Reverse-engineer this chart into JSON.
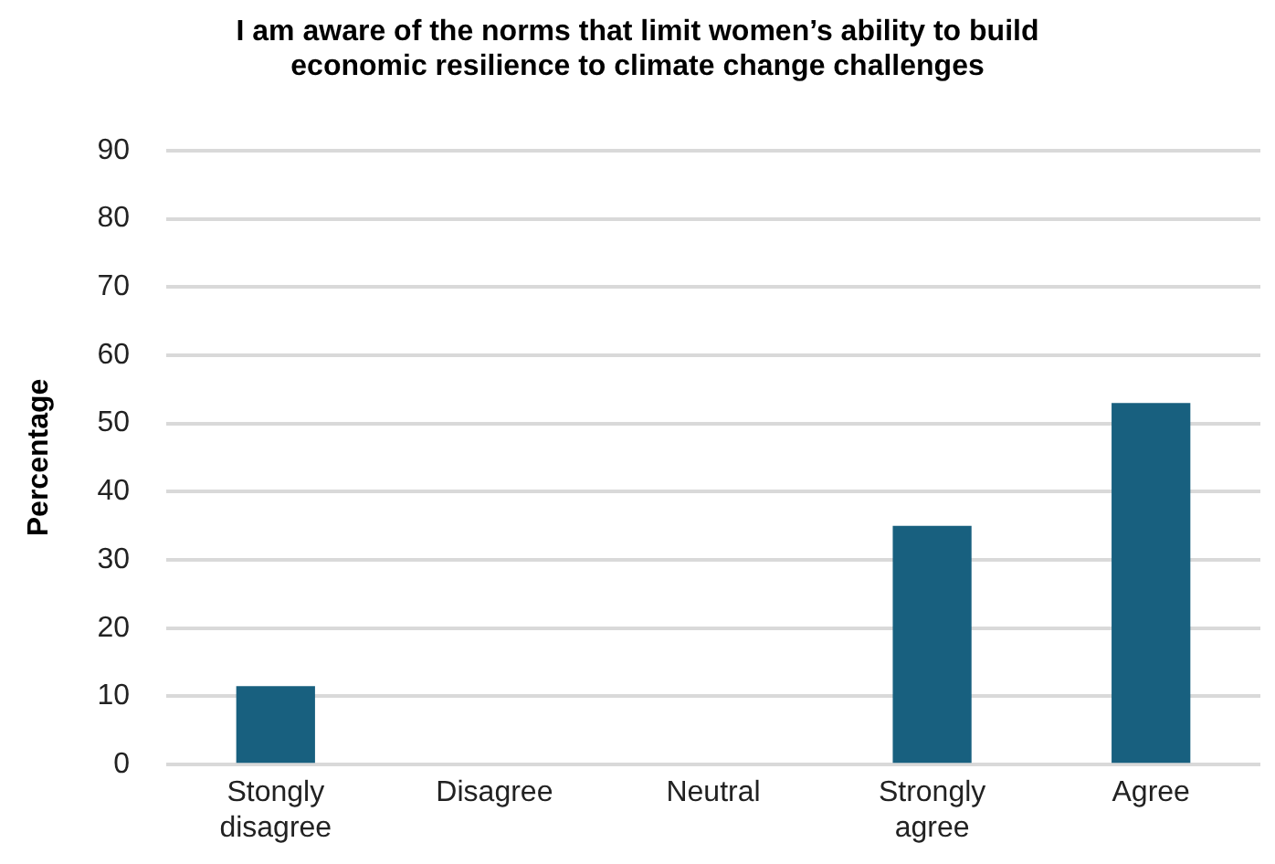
{
  "chart_data": {
    "type": "bar",
    "title": "I am aware of the norms that limit women’s ability to build economic resilience to climate change challenges",
    "ylabel": "Percentage",
    "categories": [
      "Stongly disagree",
      "Disagree",
      "Neutral",
      "Strongly agree",
      "Agree"
    ],
    "values": [
      11.5,
      0,
      0,
      35,
      53
    ],
    "color": "#18607f",
    "ylim": [
      0,
      90
    ],
    "yticks": [
      0,
      10,
      20,
      30,
      40,
      50,
      60,
      70,
      80,
      90
    ],
    "grid": "y",
    "legend": false
  }
}
